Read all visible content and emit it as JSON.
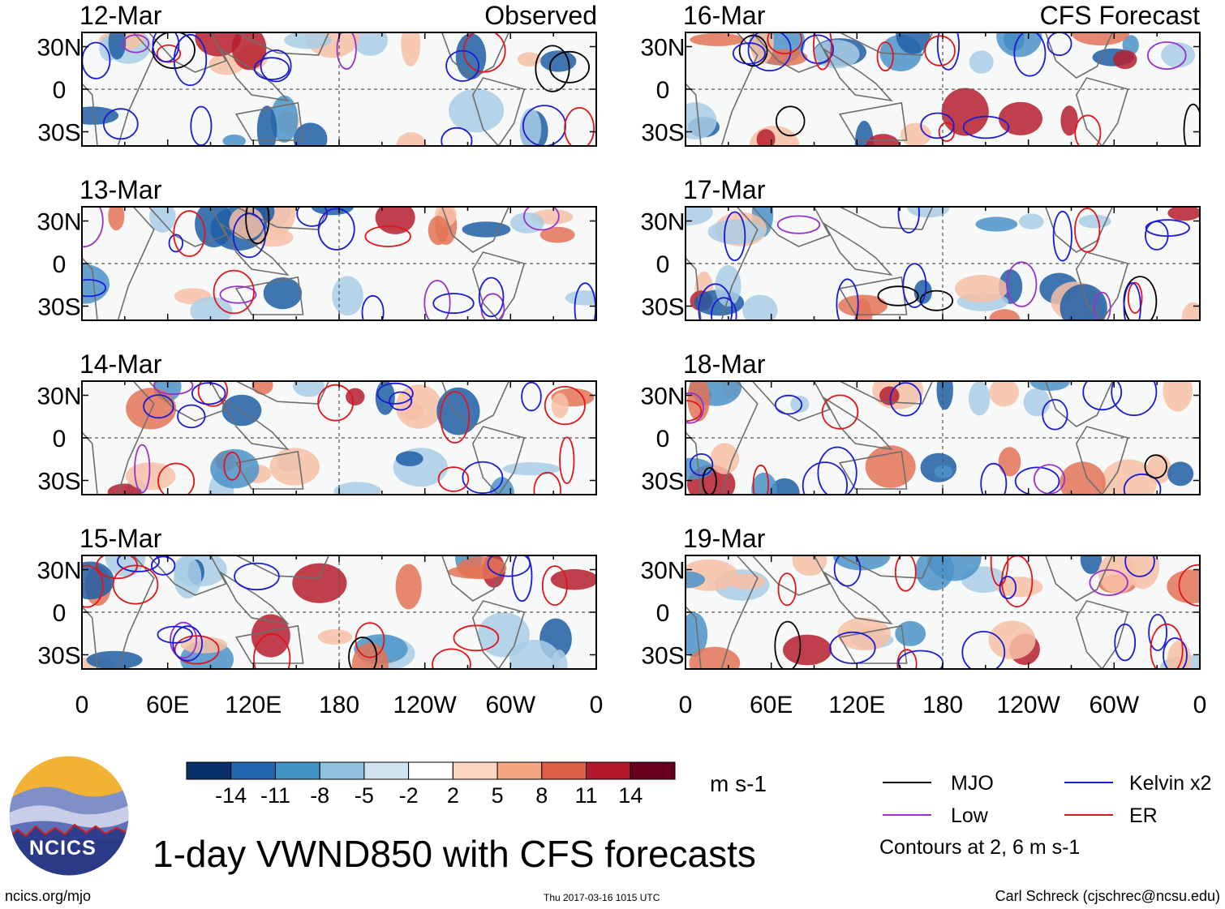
{
  "chart_data": {
    "type": "heatmap",
    "title": "1-day VWND850 with CFS forecasts",
    "columns": [
      {
        "header": "Observed",
        "panels": [
          "12-Mar",
          "13-Mar",
          "14-Mar",
          "15-Mar"
        ]
      },
      {
        "header": "CFS Forecast",
        "panels": [
          "16-Mar",
          "17-Mar",
          "18-Mar",
          "19-Mar"
        ]
      }
    ],
    "x_ticks": [
      "0",
      "60E",
      "120E",
      "180",
      "120W",
      "60W",
      "0"
    ],
    "y_ticks": [
      "30N",
      "0",
      "30S"
    ],
    "colorbar": {
      "unit": "m s-1",
      "levels": [
        "-14",
        "-11",
        "-8",
        "-5",
        "-2",
        "2",
        "5",
        "8",
        "11",
        "14"
      ],
      "colors": [
        "#08306b",
        "#2166ac",
        "#4393c3",
        "#74add1",
        "#a6cfe6",
        "#d8e8f4",
        "#ffffff",
        "#fcd4bf",
        "#f4a582",
        "#e0684a",
        "#c5272f",
        "#8c0d25",
        "#67001f"
      ]
    },
    "legend": [
      {
        "label": "MJO",
        "color": "#000000"
      },
      {
        "label": "Kelvin x2",
        "color": "#1b1bd6"
      },
      {
        "label": "Low",
        "color": "#9932cc"
      },
      {
        "label": "ER",
        "color": "#e0151b"
      }
    ],
    "contour_note": "Contours at 2, 6 m s-1"
  },
  "footer": {
    "site": "ncics.org/mjo",
    "timestamp": "Thu 2017-03-16 1015 UTC",
    "author": "Carl Schreck (cjschrec@ncsu.edu)"
  },
  "logo": {
    "text": "NCICS"
  }
}
